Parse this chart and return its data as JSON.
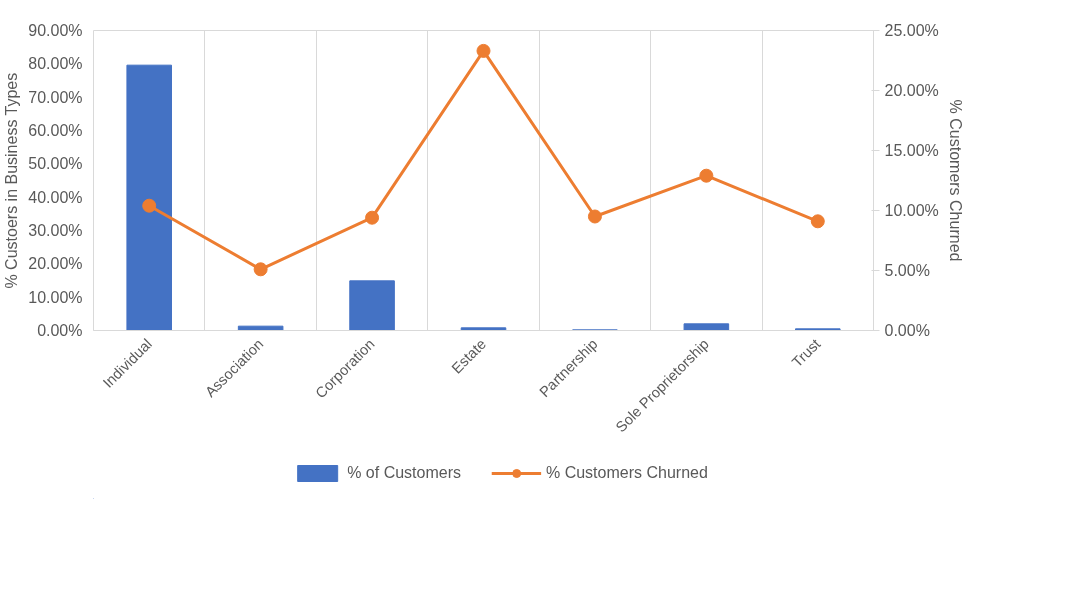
{
  "chart_data": {
    "type": "bar",
    "categories": [
      "Individual",
      "Association",
      "Corporation",
      "Estate",
      "Partnership",
      "Sole Proprietorship",
      "Trust"
    ],
    "ylabel": "% Custoers in Business Types",
    "y2label": "% Customers Churned",
    "ylim": [
      0,
      90
    ],
    "yticks": [
      {
        "value": 0,
        "label": "0.00%"
      },
      {
        "value": 10,
        "label": "10.00%"
      },
      {
        "value": 20,
        "label": "20.00%"
      },
      {
        "value": 30,
        "label": "30.00%"
      },
      {
        "value": 40,
        "label": "40.00%"
      },
      {
        "value": 50,
        "label": "50.00%"
      },
      {
        "value": 60,
        "label": "60.00%"
      },
      {
        "value": 70,
        "label": "70.00%"
      },
      {
        "value": 80,
        "label": "80.00%"
      },
      {
        "value": 90,
        "label": "90.00%"
      }
    ],
    "y2lim": [
      0,
      25
    ],
    "y2ticks": [
      {
        "value": 0,
        "label": "0.00%"
      },
      {
        "value": 5,
        "label": "5.00%"
      },
      {
        "value": 10,
        "label": "10.00%"
      },
      {
        "value": 15,
        "label": "15.00%"
      },
      {
        "value": 20,
        "label": "20.00%"
      },
      {
        "value": 25,
        "label": "25.00%"
      }
    ],
    "series": [
      {
        "name": "% of Customers",
        "color": "#4472c4",
        "values": [
          79.6,
          1.3,
          14.9,
          0.8,
          0.2,
          2.0,
          0.5
        ]
      },
      {
        "name": "% Customers Churned",
        "type": "line",
        "axis": "y2",
        "color": "#ed7d31",
        "marker": "circle",
        "values": [
          10.4,
          5.1,
          9.4,
          23.3,
          9.5,
          12.9,
          9.1
        ]
      }
    ],
    "grid": "x",
    "legend": "bottom"
  }
}
